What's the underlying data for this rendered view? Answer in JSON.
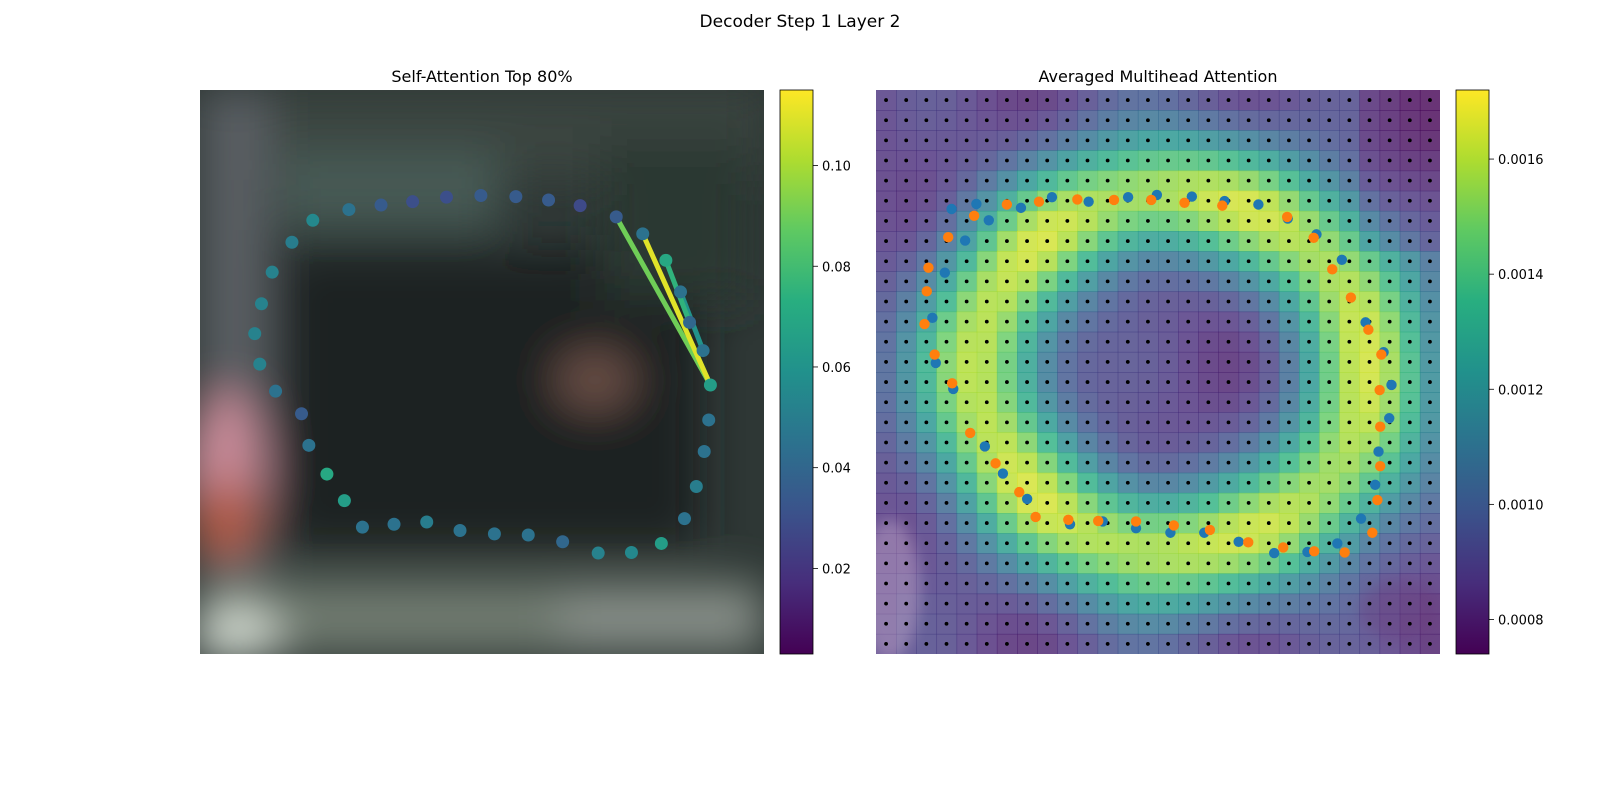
{
  "figure": {
    "suptitle": "Decoder Step 1 Layer 2"
  },
  "chart_data": [
    {
      "type": "heatmap",
      "title": "Self-Attention Top 80%",
      "background": "blurred photo crop (vehicle with contour)",
      "contour_points": [
        [
          0.738,
          0.225
        ],
        [
          0.785,
          0.255
        ],
        [
          0.826,
          0.302
        ],
        [
          0.852,
          0.358
        ],
        [
          0.868,
          0.412
        ],
        [
          0.892,
          0.462
        ],
        [
          0.905,
          0.523
        ],
        [
          0.902,
          0.585
        ],
        [
          0.894,
          0.641
        ],
        [
          0.88,
          0.703
        ],
        [
          0.859,
          0.76
        ],
        [
          0.818,
          0.804
        ],
        [
          0.765,
          0.82
        ],
        [
          0.706,
          0.821
        ],
        [
          0.643,
          0.801
        ],
        [
          0.582,
          0.789
        ],
        [
          0.522,
          0.787
        ],
        [
          0.461,
          0.781
        ],
        [
          0.402,
          0.766
        ],
        [
          0.344,
          0.77
        ],
        [
          0.288,
          0.775
        ],
        [
          0.256,
          0.728
        ],
        [
          0.225,
          0.681
        ],
        [
          0.193,
          0.63
        ],
        [
          0.18,
          0.574
        ],
        [
          0.134,
          0.534
        ],
        [
          0.106,
          0.486
        ],
        [
          0.097,
          0.432
        ],
        [
          0.109,
          0.379
        ],
        [
          0.128,
          0.323
        ],
        [
          0.163,
          0.27
        ],
        [
          0.2,
          0.231
        ],
        [
          0.264,
          0.212
        ],
        [
          0.321,
          0.204
        ],
        [
          0.377,
          0.198
        ],
        [
          0.437,
          0.19
        ],
        [
          0.498,
          0.187
        ],
        [
          0.56,
          0.189
        ],
        [
          0.618,
          0.195
        ],
        [
          0.674,
          0.205
        ]
      ],
      "point_attention": [
        0.035,
        0.045,
        0.07,
        0.045,
        0.04,
        0.045,
        0.065,
        0.045,
        0.045,
        0.05,
        0.045,
        0.065,
        0.055,
        0.052,
        0.04,
        0.045,
        0.045,
        0.045,
        0.05,
        0.045,
        0.045,
        0.065,
        0.07,
        0.045,
        0.035,
        0.045,
        0.052,
        0.052,
        0.052,
        0.052,
        0.05,
        0.055,
        0.045,
        0.035,
        0.03,
        0.03,
        0.035,
        0.035,
        0.035,
        0.028
      ],
      "attention_lines": [
        {
          "from": 1,
          "to": 6,
          "weight": 0.11
        },
        {
          "from": 0,
          "to": 6,
          "weight": 0.09
        },
        {
          "from": 2,
          "to": 4,
          "weight": 0.075
        },
        {
          "from": 3,
          "to": 5,
          "weight": 0.06
        }
      ],
      "colorbar": {
        "colormap": "viridis",
        "range": [
          0.003,
          0.115
        ],
        "ticks": [
          0.02,
          0.04,
          0.06,
          0.08,
          0.1
        ],
        "tick_labels": [
          "0.02",
          "0.04",
          "0.06",
          "0.08",
          "0.10"
        ]
      }
    },
    {
      "type": "heatmap",
      "title": "Averaged Multihead Attention",
      "grid_size": 28,
      "sampling_grid": "black dots on 28x28 grid",
      "series": [
        {
          "marker": "blue",
          "points": [
            [
              0.134,
              0.211
            ],
            [
              0.178,
              0.202
            ],
            [
              0.257,
              0.209
            ],
            [
              0.312,
              0.19
            ],
            [
              0.377,
              0.198
            ],
            [
              0.447,
              0.19
            ],
            [
              0.498,
              0.186
            ],
            [
              0.56,
              0.189
            ],
            [
              0.618,
              0.197
            ],
            [
              0.678,
              0.203
            ],
            [
              0.73,
              0.228
            ],
            [
              0.781,
              0.256
            ],
            [
              0.826,
              0.301
            ],
            [
              0.868,
              0.412
            ],
            [
              0.9,
              0.465
            ],
            [
              0.914,
              0.523
            ],
            [
              0.91,
              0.582
            ],
            [
              0.891,
              0.641
            ],
            [
              0.885,
              0.7
            ],
            [
              0.86,
              0.76
            ],
            [
              0.818,
              0.804
            ],
            [
              0.765,
              0.819
            ],
            [
              0.706,
              0.821
            ],
            [
              0.643,
              0.801
            ],
            [
              0.582,
              0.785
            ],
            [
              0.522,
              0.785
            ],
            [
              0.461,
              0.777
            ],
            [
              0.402,
              0.765
            ],
            [
              0.344,
              0.77
            ],
            [
              0.268,
              0.725
            ],
            [
              0.225,
              0.68
            ],
            [
              0.193,
              0.632
            ],
            [
              0.137,
              0.53
            ],
            [
              0.106,
              0.484
            ],
            [
              0.1,
              0.404
            ],
            [
              0.122,
              0.324
            ],
            [
              0.158,
              0.267
            ],
            [
              0.2,
              0.231
            ]
          ]
        },
        {
          "marker": "orange",
          "points": [
            [
              0.128,
              0.261
            ],
            [
              0.174,
              0.223
            ],
            [
              0.232,
              0.203
            ],
            [
              0.289,
              0.198
            ],
            [
              0.357,
              0.194
            ],
            [
              0.422,
              0.195
            ],
            [
              0.488,
              0.195
            ],
            [
              0.547,
              0.2
            ],
            [
              0.614,
              0.205
            ],
            [
              0.729,
              0.225
            ],
            [
              0.776,
              0.262
            ],
            [
              0.809,
              0.318
            ],
            [
              0.842,
              0.368
            ],
            [
              0.873,
              0.425
            ],
            [
              0.896,
              0.469
            ],
            [
              0.893,
              0.532
            ],
            [
              0.894,
              0.597
            ],
            [
              0.894,
              0.667
            ],
            [
              0.889,
              0.727
            ],
            [
              0.88,
              0.785
            ],
            [
              0.831,
              0.82
            ],
            [
              0.777,
              0.818
            ],
            [
              0.722,
              0.811
            ],
            [
              0.66,
              0.802
            ],
            [
              0.592,
              0.78
            ],
            [
              0.528,
              0.772
            ],
            [
              0.461,
              0.765
            ],
            [
              0.394,
              0.764
            ],
            [
              0.341,
              0.762
            ],
            [
              0.283,
              0.757
            ],
            [
              0.254,
              0.713
            ],
            [
              0.212,
              0.662
            ],
            [
              0.167,
              0.608
            ],
            [
              0.135,
              0.52
            ],
            [
              0.104,
              0.469
            ],
            [
              0.086,
              0.415
            ],
            [
              0.09,
              0.357
            ],
            [
              0.093,
              0.315
            ]
          ]
        }
      ],
      "colorbar": {
        "colormap": "viridis",
        "range": [
          0.00074,
          0.00172
        ],
        "ticks": [
          0.0008,
          0.001,
          0.0012,
          0.0014,
          0.0016
        ],
        "tick_labels": [
          "0.0008",
          "0.0010",
          "0.0012",
          "0.0014",
          "0.0016"
        ]
      }
    }
  ]
}
